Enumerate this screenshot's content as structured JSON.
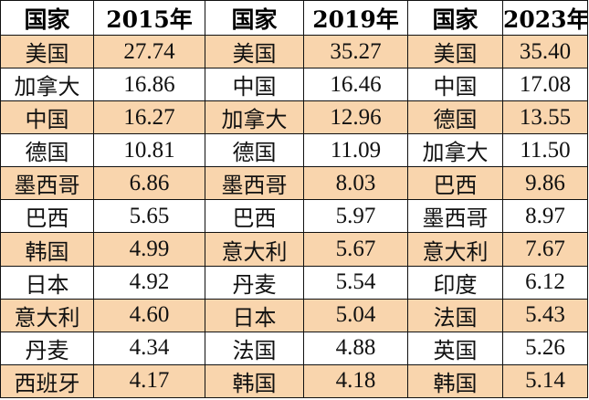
{
  "table": {
    "headers": [
      "国家",
      "2015年",
      "国家",
      "2019年",
      "国家",
      "2023年"
    ],
    "shaded_row_color": "#f9d5ad",
    "rows": [
      [
        "美国",
        "27.74",
        "美国",
        "35.27",
        "美国",
        "35.40"
      ],
      [
        "加拿大",
        "16.86",
        "中国",
        "16.46",
        "中国",
        "17.08"
      ],
      [
        "中国",
        "16.27",
        "加拿大",
        "12.96",
        "德国",
        "13.55"
      ],
      [
        "德国",
        "10.81",
        "德国",
        "11.09",
        "加拿大",
        "11.50"
      ],
      [
        "墨西哥",
        "6.86",
        "墨西哥",
        "8.03",
        "巴西",
        "9.86"
      ],
      [
        "巴西",
        "5.65",
        "巴西",
        "5.97",
        "墨西哥",
        "8.97"
      ],
      [
        "韩国",
        "4.99",
        "意大利",
        "5.67",
        "意大利",
        "7.67"
      ],
      [
        "日本",
        "4.92",
        "丹麦",
        "5.54",
        "印度",
        "6.12"
      ],
      [
        "意大利",
        "4.60",
        "日本",
        "5.04",
        "法国",
        "5.43"
      ],
      [
        "丹麦",
        "4.34",
        "法国",
        "4.88",
        "英国",
        "5.26"
      ],
      [
        "西班牙",
        "4.17",
        "韩国",
        "4.18",
        "韩国",
        "5.14"
      ]
    ]
  }
}
